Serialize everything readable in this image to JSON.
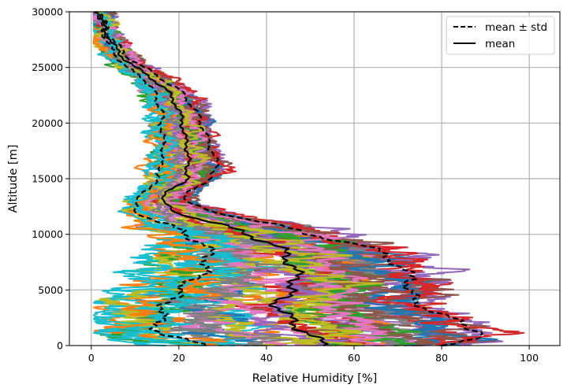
{
  "chart_data": {
    "type": "line",
    "xlabel": "Relative Humidity [%]",
    "ylabel": "Altitude [m]",
    "xlim": [
      -5,
      107
    ],
    "ylim": [
      0,
      30000
    ],
    "xticks": [
      0,
      20,
      40,
      60,
      80,
      100
    ],
    "yticks": [
      0,
      5000,
      10000,
      15000,
      20000,
      25000,
      30000
    ],
    "xtick_labels": [
      "0",
      "20",
      "40",
      "60",
      "80",
      "100"
    ],
    "ytick_labels": [
      "0",
      "5000",
      "10000",
      "15000",
      "20000",
      "25000",
      "30000"
    ],
    "grid": true,
    "legend_position": "top-right",
    "legend": [
      {
        "label": "mean ± std",
        "style": "dashed",
        "color": "#000000"
      },
      {
        "label": "mean",
        "style": "solid",
        "color": "#000000"
      }
    ],
    "series": [
      {
        "name": "mean",
        "style": "solid",
        "color": "#000000",
        "y": [
          0,
          1000,
          2000,
          3000,
          4000,
          5000,
          6000,
          7000,
          8000,
          9000,
          10000,
          11000,
          12000,
          13000,
          14000,
          15000,
          16000,
          17000,
          18000,
          19000,
          20000,
          21000,
          22000,
          23000,
          24000,
          25000,
          26000,
          27000,
          28000,
          29000,
          30000
        ],
        "x": [
          53,
          50,
          46,
          44,
          42,
          46,
          47,
          46,
          45,
          42,
          36,
          28,
          19,
          16,
          18,
          22,
          22,
          22,
          22,
          21,
          21,
          20,
          19,
          17,
          14,
          10,
          7,
          5,
          3.5,
          2.5,
          2
        ]
      },
      {
        "name": "mean + std",
        "style": "dashed",
        "color": "#000000",
        "y": [
          0,
          1000,
          2000,
          3000,
          4000,
          5000,
          6000,
          7000,
          8000,
          9000,
          10000,
          11000,
          12000,
          13000,
          14000,
          15000,
          16000,
          17000,
          18000,
          19000,
          20000,
          21000,
          22000,
          23000,
          24000,
          25000,
          26000,
          27000,
          28000,
          29000,
          30000
        ],
        "x": [
          80,
          90,
          85,
          78,
          74,
          72,
          74,
          70,
          68,
          62,
          50,
          40,
          28,
          21,
          23,
          27,
          29,
          28,
          27,
          26,
          25,
          24,
          22,
          20,
          16,
          12,
          8,
          6,
          4,
          3,
          2.5
        ]
      },
      {
        "name": "mean - std",
        "style": "dashed",
        "color": "#000000",
        "y": [
          0,
          1000,
          2000,
          3000,
          4000,
          5000,
          6000,
          7000,
          8000,
          9000,
          10000,
          11000,
          12000,
          13000,
          14000,
          15000,
          16000,
          17000,
          18000,
          19000,
          20000,
          21000,
          22000,
          23000,
          24000,
          25000,
          26000,
          27000,
          28000,
          29000,
          30000
        ],
        "x": [
          26,
          16,
          15,
          16,
          18,
          20,
          24,
          26,
          27,
          26,
          22,
          16,
          10,
          10,
          13,
          15,
          16,
          16,
          17,
          16,
          16,
          16,
          15,
          14,
          12,
          8,
          6,
          4,
          3,
          2,
          1.5
        ]
      }
    ],
    "colors": [
      "#1f77b4",
      "#ff7f0e",
      "#2ca02c",
      "#d62728",
      "#9467bd",
      "#8c564b",
      "#e377c2",
      "#7f7f7f",
      "#bcbd22",
      "#17becf"
    ]
  }
}
